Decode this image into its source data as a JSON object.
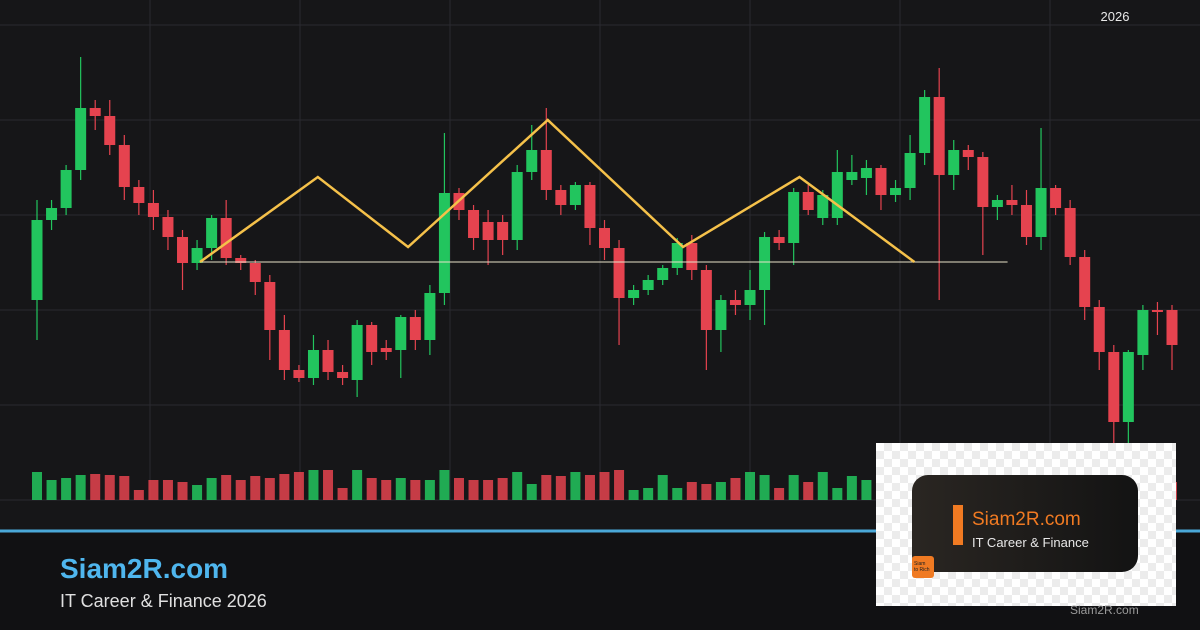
{
  "chart_data": {
    "type": "candlestick",
    "title": "Siam2R.com",
    "subtitle": "IT Career & Finance 2026",
    "annotation": "2026",
    "watermark": "Siam2R.com",
    "logo": {
      "name": "Siam2R.com",
      "tagline": "IT Career & Finance",
      "icon": [
        "Siam",
        "to Rich"
      ]
    },
    "up_color": "#22c55e",
    "down_color": "#e5434f",
    "ylim": [
      0,
      500
    ],
    "open": [
      200,
      280,
      292,
      330,
      392,
      384,
      355,
      313,
      297,
      283,
      263,
      237,
      252,
      282,
      242,
      237,
      218,
      170,
      130,
      122,
      150,
      128,
      120,
      175,
      152,
      150,
      183,
      160,
      207,
      307,
      290,
      278,
      278,
      260,
      328,
      350,
      310,
      295,
      315,
      272,
      252,
      202,
      210,
      220,
      232,
      257,
      230,
      170,
      200,
      195,
      210,
      263,
      257,
      308,
      282,
      282,
      320,
      322,
      332,
      305,
      312,
      347,
      403,
      325,
      350,
      343,
      293,
      300,
      295,
      263,
      312,
      292,
      243,
      193,
      148,
      78,
      145,
      190,
      190
    ],
    "close": [
      280,
      292,
      330,
      392,
      384,
      355,
      313,
      297,
      283,
      263,
      237,
      252,
      282,
      242,
      237,
      218,
      170,
      130,
      122,
      150,
      128,
      122,
      175,
      148,
      148,
      183,
      160,
      207,
      307,
      290,
      262,
      260,
      260,
      328,
      350,
      310,
      295,
      315,
      272,
      252,
      202,
      210,
      220,
      232,
      257,
      230,
      170,
      200,
      195,
      210,
      263,
      257,
      308,
      290,
      305,
      328,
      328,
      332,
      305,
      312,
      347,
      403,
      325,
      350,
      343,
      293,
      300,
      295,
      263,
      312,
      292,
      243,
      193,
      148,
      78,
      148,
      190,
      188,
      155
    ],
    "high": [
      300,
      300,
      335,
      443,
      400,
      400,
      365,
      320,
      310,
      290,
      270,
      260,
      285,
      300,
      245,
      240,
      225,
      185,
      135,
      165,
      160,
      135,
      180,
      178,
      160,
      185,
      190,
      215,
      367,
      312,
      295,
      290,
      285,
      335,
      375,
      392,
      315,
      318,
      318,
      280,
      260,
      215,
      225,
      235,
      262,
      265,
      235,
      205,
      210,
      230,
      268,
      270,
      312,
      315,
      310,
      350,
      345,
      340,
      335,
      320,
      365,
      410,
      432,
      360,
      355,
      348,
      305,
      315,
      310,
      372,
      315,
      300,
      250,
      200,
      155,
      150,
      195,
      198,
      195
    ],
    "low": [
      160,
      270,
      285,
      320,
      370,
      345,
      300,
      285,
      270,
      250,
      210,
      230,
      240,
      235,
      230,
      205,
      140,
      120,
      118,
      115,
      120,
      115,
      103,
      135,
      140,
      122,
      150,
      145,
      195,
      280,
      250,
      235,
      245,
      250,
      320,
      300,
      285,
      290,
      255,
      240,
      155,
      195,
      205,
      215,
      225,
      220,
      130,
      148,
      185,
      180,
      175,
      250,
      235,
      285,
      275,
      275,
      315,
      305,
      290,
      298,
      300,
      335,
      200,
      310,
      330,
      245,
      280,
      285,
      255,
      250,
      285,
      235,
      180,
      130,
      55,
      50,
      130,
      165,
      130
    ],
    "volume": [
      28,
      20,
      22,
      25,
      26,
      25,
      24,
      10,
      20,
      20,
      18,
      15,
      22,
      25,
      20,
      24,
      22,
      26,
      28,
      30,
      30,
      12,
      30,
      22,
      20,
      22,
      20,
      20,
      30,
      22,
      20,
      20,
      22,
      28,
      16,
      25,
      24,
      28,
      25,
      28,
      30,
      10,
      12,
      25,
      12,
      18,
      16,
      18,
      22,
      28,
      25,
      12,
      25,
      18,
      28,
      12,
      24,
      20,
      18,
      14,
      22,
      28,
      24,
      26,
      18,
      28,
      22,
      15,
      18,
      20,
      25,
      20,
      18,
      22,
      24,
      22,
      20,
      15,
      18
    ],
    "pattern": {
      "color": "#f5c14a",
      "x": [
        11.2,
        19.3,
        25.5,
        35.1,
        44.4,
        52.4,
        60.3
      ],
      "values": [
        238,
        323,
        253,
        380,
        253,
        323,
        238
      ]
    },
    "neckline": {
      "color": "#e8e2c8",
      "x": [
        11.2,
        66.7
      ],
      "value": 238
    }
  }
}
